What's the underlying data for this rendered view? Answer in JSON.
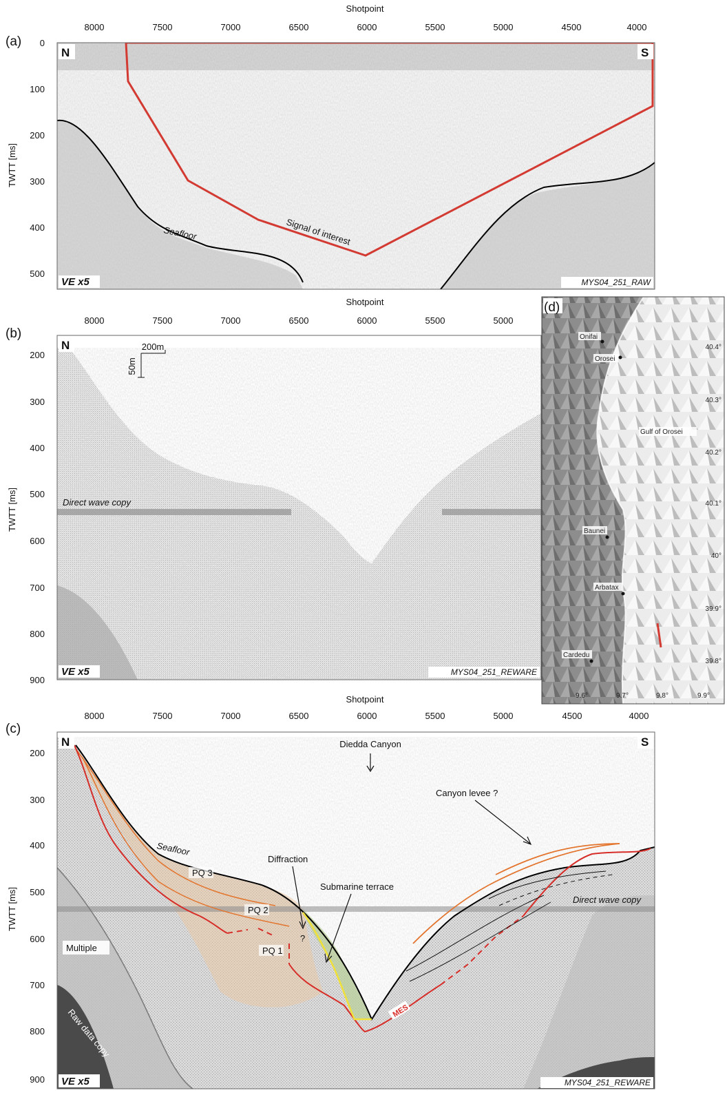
{
  "figure": {
    "shotpoint_ticks": [
      "8000",
      "7500",
      "7000",
      "6500",
      "6000",
      "5500",
      "5000",
      "4500",
      "4000"
    ],
    "panel_b_shotpoint_ticks": [
      "8000",
      "7500",
      "7000",
      "6500",
      "6000",
      "5500",
      "5000"
    ],
    "axis_x_title": "Shotpoint",
    "axis_y_title": "TWTT [ms]",
    "panel_a": {
      "label": "(a)",
      "y_ticks": [
        "0",
        "100",
        "200",
        "300",
        "400",
        "500"
      ],
      "north": "N",
      "south": "S",
      "ve": "VE x5",
      "source": "MYS04_251_RAW",
      "seafloor": "Seafloor",
      "signal": "Signal of interest"
    },
    "panel_b": {
      "label": "(b)",
      "y_ticks": [
        "200",
        "300",
        "400",
        "500",
        "600",
        "700",
        "800",
        "900"
      ],
      "north": "N",
      "ve": "VE x5",
      "source": "MYS04_251_REWARE",
      "direct_wave": "Direct wave copy",
      "scale_h": "200m",
      "scale_v": "50m"
    },
    "panel_c": {
      "label": "(c)",
      "y_ticks": [
        "200",
        "300",
        "400",
        "500",
        "600",
        "700",
        "800",
        "900"
      ],
      "north": "N",
      "south": "S",
      "ve": "VE x5",
      "source": "MYS04_251_REWARE",
      "canyon": "Diedda Canyon",
      "seafloor": "Seafloor",
      "diffraction": "Diffraction",
      "terrace": "Submarine terrace",
      "levee": "Canyon levee ?",
      "direct_wave": "Direct wave copy",
      "multiple": "Multiple",
      "raw_copy": "Raw data copy",
      "pq3": "PQ 3",
      "pq2": "PQ 2",
      "pq1": "PQ 1",
      "question": "?",
      "mes": "MES"
    },
    "panel_d": {
      "label": "(d)",
      "places": [
        "Onifai",
        "Orosei",
        "Gulf of Orosei",
        "Baunei",
        "Arbatax",
        "Cardedu"
      ],
      "lat_ticks": [
        "40.4°",
        "40.3°",
        "40.2°",
        "40.1°",
        "40°",
        "39.9°",
        "39.8°"
      ],
      "lon_ticks": [
        "9.6°",
        "9.7°",
        "9.8°",
        "9.9°"
      ],
      "shotpoint_ticks": [
        "4500",
        "4000"
      ]
    }
  }
}
